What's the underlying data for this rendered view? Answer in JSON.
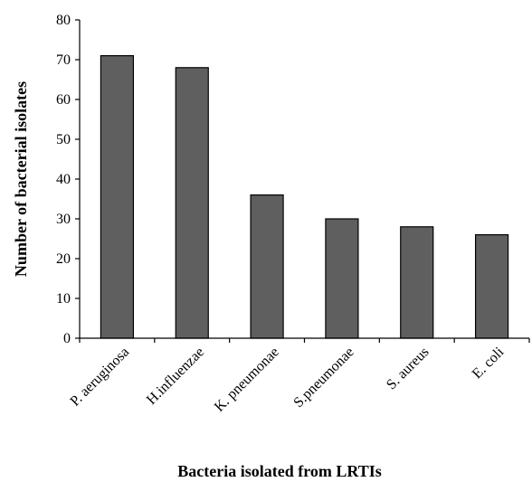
{
  "chart_data": {
    "type": "bar",
    "categories": [
      "P. aeruginosa",
      "H.influenzae",
      "K. pneumonae",
      "S.pneumonae",
      "S. aureus",
      "E. coli"
    ],
    "values": [
      71,
      68,
      36,
      30,
      28,
      26
    ],
    "xlabel": "Bacteria isolated from LRTIs",
    "ylabel": "Number of bacterial isolates",
    "ylim": [
      0,
      80
    ],
    "yticks": [
      0,
      10,
      20,
      30,
      40,
      50,
      60,
      70,
      80
    ],
    "grid": false,
    "legend": "none",
    "colors": {
      "bar_fill": "#5f5f5f",
      "bar_stroke": "#000000",
      "axis": "#000000"
    }
  }
}
